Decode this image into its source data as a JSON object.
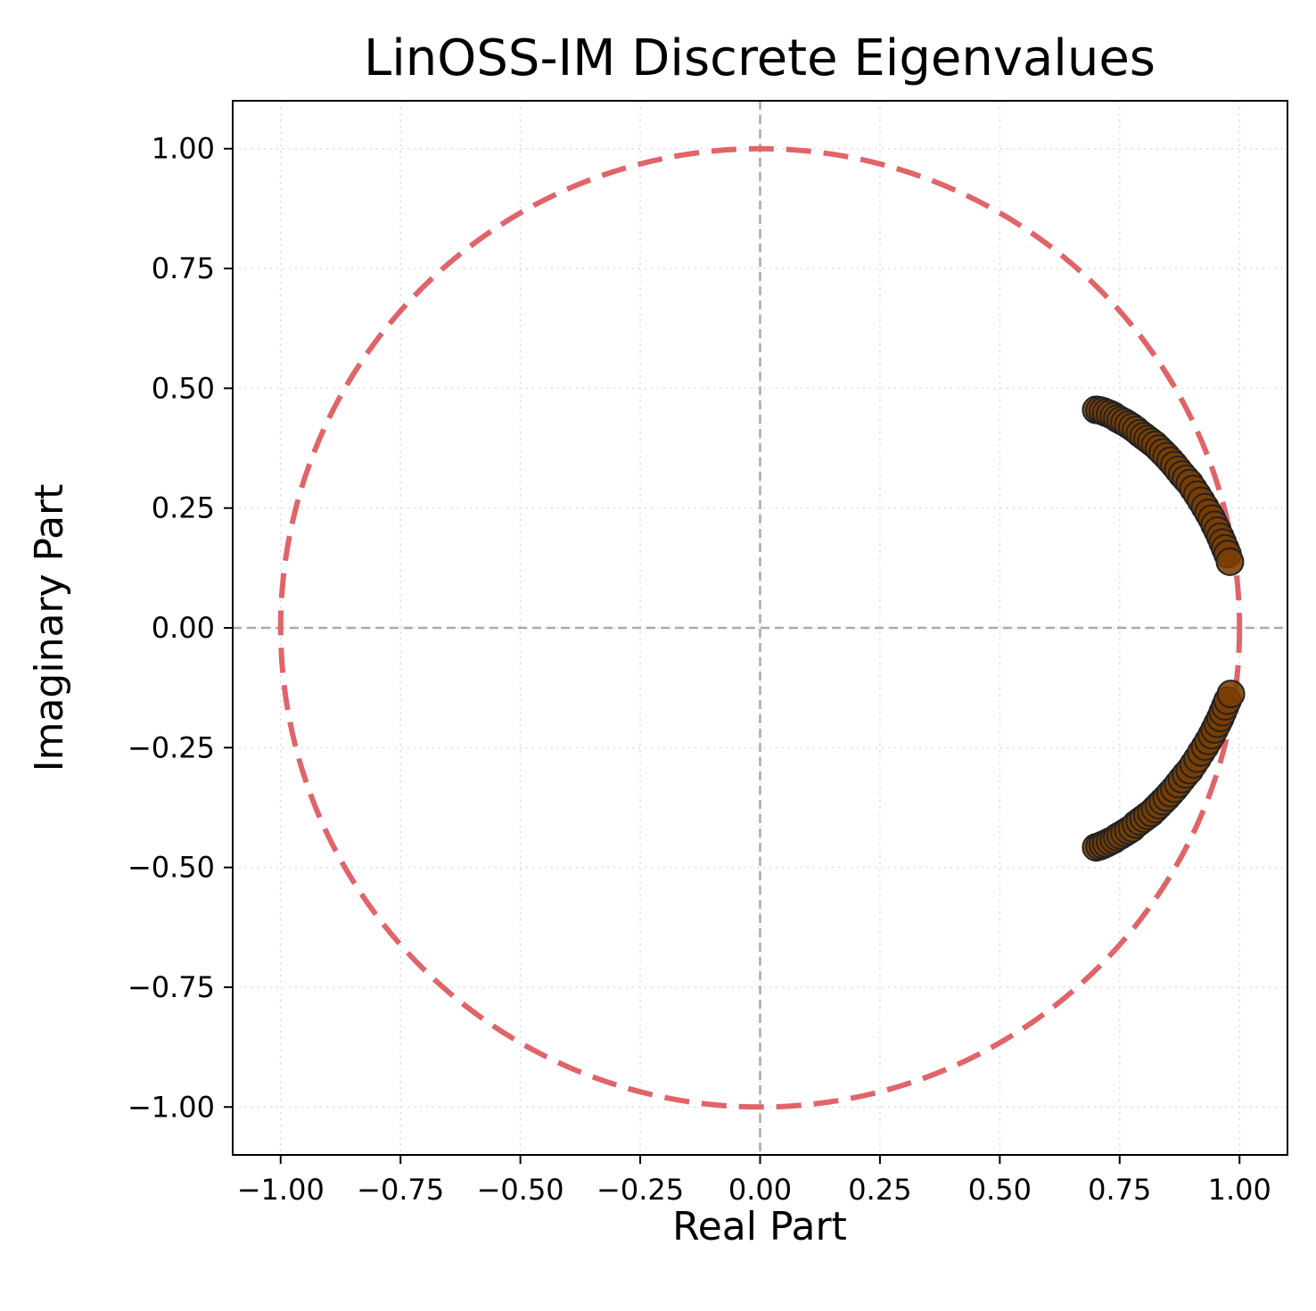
{
  "chart_data": {
    "type": "scatter",
    "title": "LinOSS-IM Discrete Eigenvalues",
    "xlabel": "Real Part",
    "ylabel": "Imaginary Part",
    "xlim": [
      -1.1,
      1.1
    ],
    "ylim": [
      -1.1,
      1.1
    ],
    "xticks": [
      -1.0,
      -0.75,
      -0.5,
      -0.25,
      0.0,
      0.25,
      0.5,
      0.75,
      1.0
    ],
    "yticks": [
      -1.0,
      -0.75,
      -0.5,
      -0.25,
      0.0,
      0.25,
      0.5,
      0.75,
      1.0
    ],
    "xtick_labels": [
      "−1.00",
      "−0.75",
      "−0.50",
      "−0.25",
      "0.00",
      "0.25",
      "0.50",
      "0.75",
      "1.00"
    ],
    "ytick_labels": [
      "−1.00",
      "−0.75",
      "−0.50",
      "−0.25",
      "0.00",
      "0.25",
      "0.50",
      "0.75",
      "1.00"
    ],
    "grid": "dotted",
    "reference_lines": {
      "x": 0,
      "y": 0,
      "style": "dashed",
      "color": "#aaaaaa"
    },
    "unit_circle": {
      "radius": 1,
      "style": "dashed",
      "color": "#e06468"
    },
    "marker_color": "#7a3e00",
    "marker_edge_color": "#222222",
    "series": [
      {
        "points": [
          {
            "x": 0.701,
            "y": 0.455
          },
          {
            "x": 0.708,
            "y": 0.454
          },
          {
            "x": 0.715,
            "y": 0.452
          },
          {
            "x": 0.722,
            "y": 0.449
          },
          {
            "x": 0.73,
            "y": 0.446
          },
          {
            "x": 0.738,
            "y": 0.442
          },
          {
            "x": 0.745,
            "y": 0.437
          },
          {
            "x": 0.752,
            "y": 0.433
          },
          {
            "x": 0.76,
            "y": 0.429
          },
          {
            "x": 0.768,
            "y": 0.424
          },
          {
            "x": 0.776,
            "y": 0.419
          },
          {
            "x": 0.784,
            "y": 0.413
          },
          {
            "x": 0.792,
            "y": 0.406
          },
          {
            "x": 0.8,
            "y": 0.4
          },
          {
            "x": 0.808,
            "y": 0.394
          },
          {
            "x": 0.816,
            "y": 0.388
          },
          {
            "x": 0.824,
            "y": 0.382
          },
          {
            "x": 0.832,
            "y": 0.374
          },
          {
            "x": 0.84,
            "y": 0.366
          },
          {
            "x": 0.848,
            "y": 0.358
          },
          {
            "x": 0.856,
            "y": 0.349
          },
          {
            "x": 0.864,
            "y": 0.34
          },
          {
            "x": 0.872,
            "y": 0.33
          },
          {
            "x": 0.88,
            "y": 0.32
          },
          {
            "x": 0.888,
            "y": 0.311
          },
          {
            "x": 0.896,
            "y": 0.302
          },
          {
            "x": 0.904,
            "y": 0.29
          },
          {
            "x": 0.912,
            "y": 0.278
          },
          {
            "x": 0.92,
            "y": 0.265
          },
          {
            "x": 0.928,
            "y": 0.252
          },
          {
            "x": 0.935,
            "y": 0.24
          },
          {
            "x": 0.942,
            "y": 0.228
          },
          {
            "x": 0.948,
            "y": 0.215
          },
          {
            "x": 0.954,
            "y": 0.203
          },
          {
            "x": 0.96,
            "y": 0.19
          },
          {
            "x": 0.965,
            "y": 0.178
          },
          {
            "x": 0.97,
            "y": 0.166
          },
          {
            "x": 0.975,
            "y": 0.154
          },
          {
            "x": 0.98,
            "y": 0.138
          },
          {
            "x": 0.701,
            "y": -0.458
          },
          {
            "x": 0.708,
            "y": -0.456
          },
          {
            "x": 0.715,
            "y": -0.453
          },
          {
            "x": 0.722,
            "y": -0.45
          },
          {
            "x": 0.73,
            "y": -0.446
          },
          {
            "x": 0.738,
            "y": -0.442
          },
          {
            "x": 0.745,
            "y": -0.437
          },
          {
            "x": 0.752,
            "y": -0.433
          },
          {
            "x": 0.76,
            "y": -0.428
          },
          {
            "x": 0.768,
            "y": -0.423
          },
          {
            "x": 0.776,
            "y": -0.418
          },
          {
            "x": 0.784,
            "y": -0.41
          },
          {
            "x": 0.792,
            "y": -0.404
          },
          {
            "x": 0.8,
            "y": -0.398
          },
          {
            "x": 0.808,
            "y": -0.392
          },
          {
            "x": 0.816,
            "y": -0.386
          },
          {
            "x": 0.824,
            "y": -0.378
          },
          {
            "x": 0.832,
            "y": -0.37
          },
          {
            "x": 0.84,
            "y": -0.362
          },
          {
            "x": 0.848,
            "y": -0.354
          },
          {
            "x": 0.856,
            "y": -0.345
          },
          {
            "x": 0.864,
            "y": -0.336
          },
          {
            "x": 0.872,
            "y": -0.326
          },
          {
            "x": 0.88,
            "y": -0.316
          },
          {
            "x": 0.888,
            "y": -0.306
          },
          {
            "x": 0.896,
            "y": -0.297
          },
          {
            "x": 0.904,
            "y": -0.285
          },
          {
            "x": 0.912,
            "y": -0.273
          },
          {
            "x": 0.92,
            "y": -0.26
          },
          {
            "x": 0.928,
            "y": -0.248
          },
          {
            "x": 0.935,
            "y": -0.236
          },
          {
            "x": 0.942,
            "y": -0.224
          },
          {
            "x": 0.948,
            "y": -0.212
          },
          {
            "x": 0.954,
            "y": -0.2
          },
          {
            "x": 0.96,
            "y": -0.188
          },
          {
            "x": 0.965,
            "y": -0.176
          },
          {
            "x": 0.97,
            "y": -0.164
          },
          {
            "x": 0.975,
            "y": -0.152
          },
          {
            "x": 0.982,
            "y": -0.138
          }
        ]
      }
    ]
  }
}
